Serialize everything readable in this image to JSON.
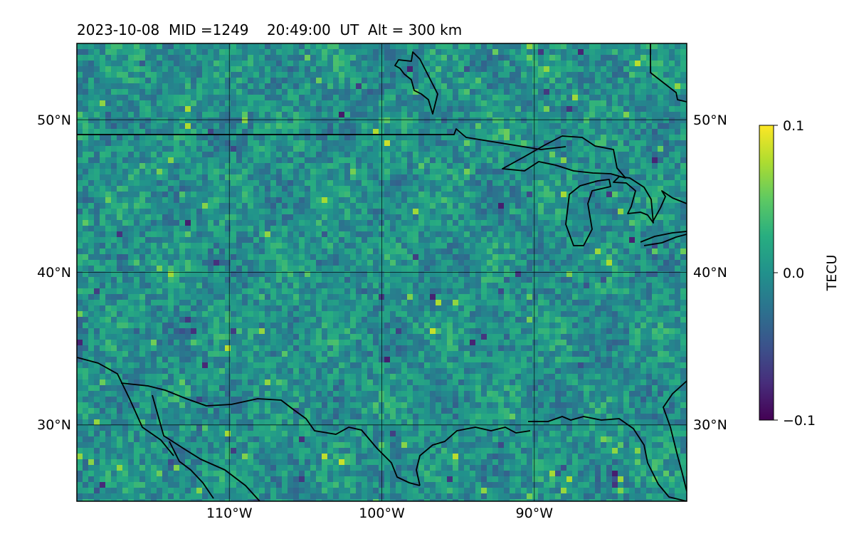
{
  "chart_data": {
    "type": "heatmap",
    "title": "2023-10-08  MID =1249    20:49:00  UT  Alt = 300 km",
    "projection": "plate-carree map",
    "lon_range": [
      -120,
      -80
    ],
    "lat_range": [
      25,
      55
    ],
    "x_ticks": [
      {
        "value": -110,
        "label": "110°W"
      },
      {
        "value": -100,
        "label": "100°W"
      },
      {
        "value": -90,
        "label": "90°W"
      }
    ],
    "y_ticks": [
      {
        "value": 50,
        "label": "50°N"
      },
      {
        "value": 40,
        "label": "40°N"
      },
      {
        "value": 30,
        "label": "30°N"
      }
    ],
    "grid": true,
    "colormap": "viridis",
    "colorbar": {
      "label": "TECU",
      "range": [
        -0.1,
        0.1
      ],
      "ticks": [
        {
          "value": 0.1,
          "label": "0.1"
        },
        {
          "value": 0.0,
          "label": "0.0"
        },
        {
          "value": -0.1,
          "label": "−0.1"
        }
      ],
      "placement": "right"
    },
    "value_scale": "fine-scale noise near 0.0 TECU, mostly between -0.05 and 0.05, with isolated positive spots near 0.1 and negative spots near -0.1",
    "coastlines": "North American coastlines, US-Canada and US-Mexico borders, Great Lakes"
  }
}
